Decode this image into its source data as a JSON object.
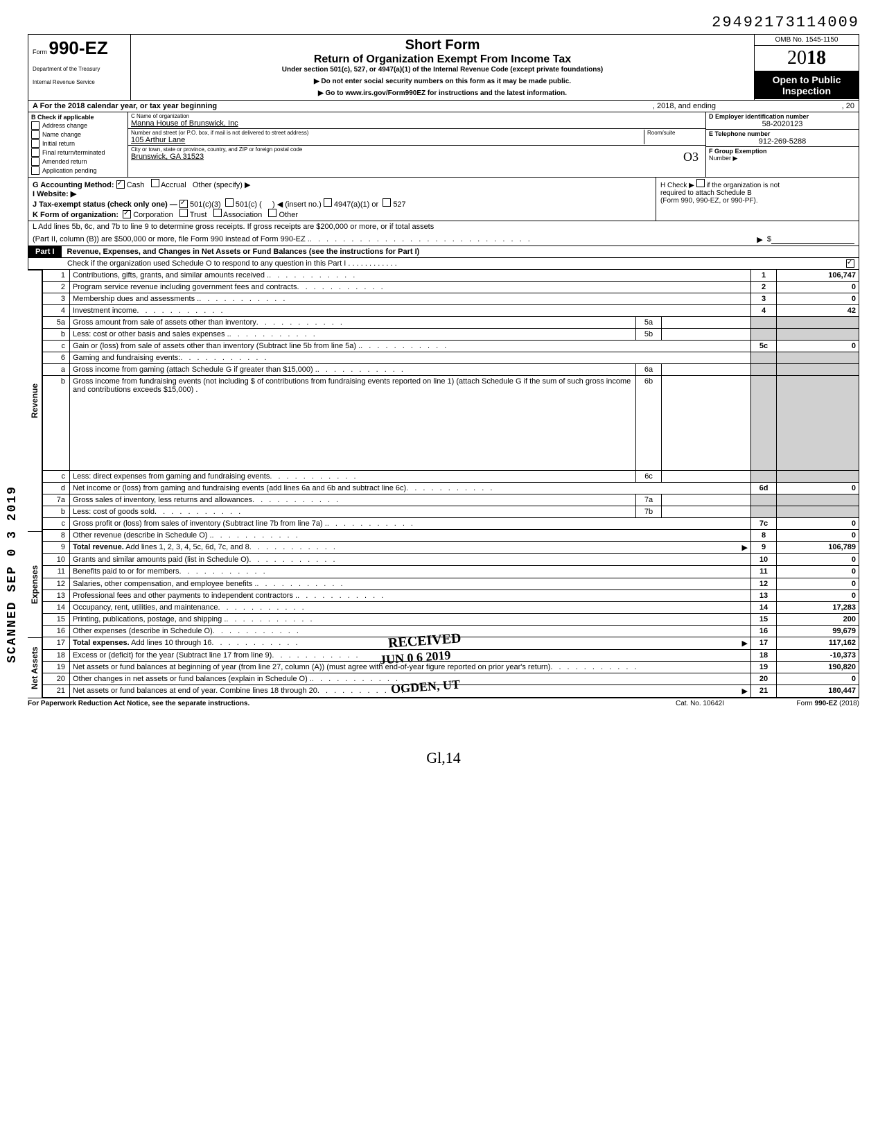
{
  "top_number": "29492173114009",
  "header": {
    "form_prefix": "Form",
    "form_number": "990-EZ",
    "dept1": "Department of the Treasury",
    "dept2": "Internal Revenue Service",
    "title1": "Short Form",
    "title2": "Return of Organization Exempt From Income Tax",
    "sub": "Under section 501(c), 527, or 4947(a)(1) of the Internal Revenue Code (except private foundations)",
    "note1": "▶ Do not enter social security numbers on this form as it may be made public.",
    "note2": "▶ Go to www.irs.gov/Form990EZ for instructions and the latest information.",
    "omb": "OMB No. 1545-1150",
    "year_light": "20",
    "year_bold": "18",
    "open1": "Open to Public",
    "open2": "Inspection"
  },
  "row_a": {
    "left": "A For the 2018 calendar year, or tax year beginning",
    "mid": ", 2018, and ending",
    "right": ", 20"
  },
  "section_b": {
    "header": "B Check if applicable",
    "items": [
      "Address change",
      "Name change",
      "Initial return",
      "Final return/terminated",
      "Amended return",
      "Application pending"
    ]
  },
  "section_c": {
    "name_label": "C Name of organization",
    "name": "Manna House of Brunswick, Inc",
    "street_label": "Number and street (or P.O. box, if mail is not delivered to street address)",
    "room_label": "Room/suite",
    "street": "105 Arthur Lane",
    "city_label": "City or town, state or province, country, and ZIP or foreign postal code",
    "city": "Brunswick, GA 31523"
  },
  "section_d": {
    "ein_label": "D Employer identification number",
    "ein": "58-2020123",
    "tel_label": "E Telephone number",
    "tel": "912-269-5288",
    "grp_label": "F Group Exemption",
    "grp_label2": "Number ▶"
  },
  "hand_o3": "O3",
  "line_g": {
    "label": "G  Accounting Method:",
    "opt1": "Cash",
    "opt2": "Accrual",
    "opt3": "Other (specify) ▶"
  },
  "line_h": {
    "text1": "H Check ▶",
    "text2": "if the organization is not",
    "text3": "required to attach Schedule B",
    "text4": "(Form 990, 990-EZ, or 990-PF)."
  },
  "line_i": {
    "label": "I   Website: ▶"
  },
  "line_j": {
    "label": "J  Tax-exempt status (check only one) —",
    "opt1": "501(c)(3)",
    "opt2": "501(c) (",
    "opt2b": ") ◀ (insert no.)",
    "opt3": "4947(a)(1) or",
    "opt4": "527"
  },
  "line_k": {
    "label": "K  Form of organization:",
    "opt1": "Corporation",
    "opt2": "Trust",
    "opt3": "Association",
    "opt4": "Other"
  },
  "line_l": {
    "text1": "L  Add lines 5b, 6c, and 7b to line 9 to determine gross receipts. If gross receipts are $200,000 or more, or if total assets",
    "text2": "(Part II, column (B)) are $500,000 or more, file Form 990 instead of Form 990-EZ .",
    "arrow": "▶",
    "dollar": "$"
  },
  "part1": {
    "tab": "Part I",
    "title": "Revenue, Expenses, and Changes in Net Assets or Fund Balances (see the instructions for Part I)",
    "check_line": "Check if the organization used Schedule O to respond to any question in this Part I .  .  .  .  .  .  .  .  .  .  .  .",
    "check_val": "✓"
  },
  "sections": {
    "revenue": "Revenue",
    "expenses": "Expenses",
    "netassets": "Net Assets"
  },
  "lines": [
    {
      "n": "1",
      "desc": "Contributions, gifts, grants, and similar amounts received .",
      "ln": "1",
      "val": "106,747"
    },
    {
      "n": "2",
      "desc": "Program service revenue including government fees and contracts",
      "ln": "2",
      "val": "0"
    },
    {
      "n": "3",
      "desc": "Membership dues and assessments .",
      "ln": "3",
      "val": "0"
    },
    {
      "n": "4",
      "desc": "Investment income",
      "ln": "4",
      "val": "42"
    },
    {
      "n": "5a",
      "desc": "Gross amount from sale of assets other than inventory",
      "mid": "5a",
      "midval": ""
    },
    {
      "n": "b",
      "desc": "Less: cost or other basis and sales expenses .",
      "mid": "5b",
      "midval": ""
    },
    {
      "n": "c",
      "desc": "Gain or (loss) from sale of assets other than inventory (Subtract line 5b from line 5a) .",
      "ln": "5c",
      "val": "0"
    },
    {
      "n": "6",
      "desc": "Gaming and fundraising events:"
    },
    {
      "n": "a",
      "desc": "Gross income from gaming (attach Schedule G if greater than $15,000) .",
      "mid": "6a",
      "midval": ""
    },
    {
      "n": "b",
      "desc": "Gross income from fundraising events (not including  $                                        of contributions from fundraising events reported on line 1) (attach Schedule G if the sum of such gross income and contributions exceeds $15,000) .",
      "mid": "6b",
      "midval": ""
    },
    {
      "n": "c",
      "desc": "Less: direct expenses from gaming and fundraising events",
      "mid": "6c",
      "midval": ""
    },
    {
      "n": "d",
      "desc": "Net income or (loss) from gaming and fundraising events (add lines 6a and 6b and subtract line 6c)",
      "ln": "6d",
      "val": "0"
    },
    {
      "n": "7a",
      "desc": "Gross sales of inventory, less returns and allowances",
      "mid": "7a",
      "midval": ""
    },
    {
      "n": "b",
      "desc": "Less: cost of goods sold",
      "mid": "7b",
      "midval": ""
    },
    {
      "n": "c",
      "desc": "Gross profit or (loss) from sales of inventory (Subtract line 7b from line 7a) .",
      "ln": "7c",
      "val": "0"
    },
    {
      "n": "8",
      "desc": "Other revenue (describe in Schedule O) .",
      "ln": "8",
      "val": "0"
    },
    {
      "n": "9",
      "desc": "Total revenue. Add lines 1, 2, 3, 4, 5c, 6d, 7c, and 8",
      "ln": "9",
      "val": "106,789",
      "bold": true,
      "arrow": true
    },
    {
      "n": "10",
      "desc": "Grants and similar amounts paid (list in Schedule O)",
      "ln": "10",
      "val": "0"
    },
    {
      "n": "11",
      "desc": "Benefits paid to or for members",
      "ln": "11",
      "val": "0"
    },
    {
      "n": "12",
      "desc": "Salaries, other compensation, and employee benefits .",
      "ln": "12",
      "val": "0"
    },
    {
      "n": "13",
      "desc": "Professional fees and other payments to independent contractors .",
      "ln": "13",
      "val": "0"
    },
    {
      "n": "14",
      "desc": "Occupancy, rent, utilities, and maintenance",
      "ln": "14",
      "val": "17,283"
    },
    {
      "n": "15",
      "desc": "Printing, publications, postage, and shipping .",
      "ln": "15",
      "val": "200"
    },
    {
      "n": "16",
      "desc": "Other expenses (describe in Schedule O)",
      "ln": "16",
      "val": "99,679"
    },
    {
      "n": "17",
      "desc": "Total expenses. Add lines 10 through 16",
      "ln": "17",
      "val": "117,162",
      "bold": true,
      "arrow": true
    },
    {
      "n": "18",
      "desc": "Excess or (deficit) for the year (Subtract line 17 from line 9)",
      "ln": "18",
      "val": "-10,373"
    },
    {
      "n": "19",
      "desc": "Net assets or fund balances at beginning of year (from line 27, column (A)) (must agree with end-of-year figure reported on prior year's return)",
      "ln": "19",
      "val": "190,820"
    },
    {
      "n": "20",
      "desc": "Other changes in net assets or fund balances (explain in Schedule O) .",
      "ln": "20",
      "val": "0"
    },
    {
      "n": "21",
      "desc": "Net assets or fund balances at end of year. Combine lines 18 through 20",
      "ln": "21",
      "val": "180,447",
      "arrow": true
    }
  ],
  "footer": {
    "left": "For Paperwork Reduction Act Notice, see the separate instructions.",
    "center": "Cat. No. 10642I",
    "right": "Form 990-EZ (2018)"
  },
  "scanned": "SCANNED SEP 0 3 2019",
  "stamp": {
    "received": "RECEIVED",
    "date": "JUN 0 6 2019",
    "ogden": "OGDEN, UT"
  },
  "hand": "Gl,14",
  "colors": {
    "text": "#000000",
    "bg": "#ffffff",
    "shaded": "#d0d0d0",
    "black": "#000000"
  }
}
